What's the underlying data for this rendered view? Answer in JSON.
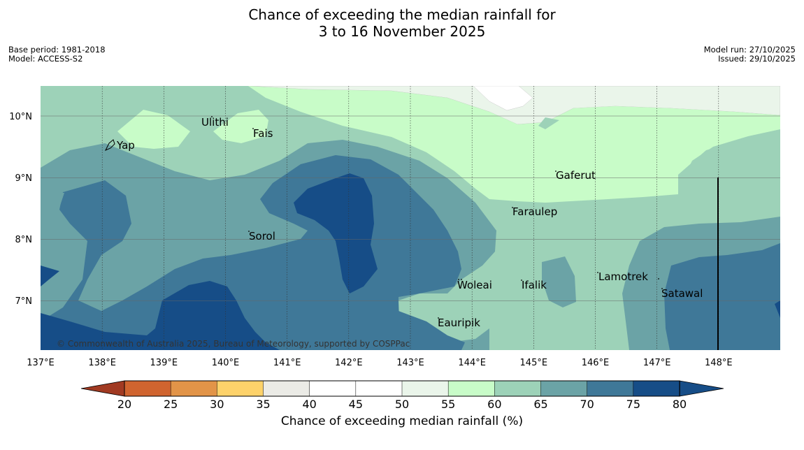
{
  "title_line1": "Chance of exceeding the median rainfall for",
  "title_line2": "3 to 16 November 2025",
  "base_period": "Base period: 1981-2018",
  "model": "Model: ACCESS-S2",
  "model_run": "Model run: 27/10/2025",
  "issued": "Issued: 29/10/2025",
  "copyright": "© Commonwealth of Australia 2025, Bureau of Meteorology, supported by COSPPac",
  "lon_ticks": [
    "137°E",
    "138°E",
    "139°E",
    "140°E",
    "141°E",
    "142°E",
    "143°E",
    "144°E",
    "145°E",
    "146°E",
    "147°E",
    "148°E"
  ],
  "lat_ticks": [
    "10°N",
    "9°N",
    "8°N",
    "7°N"
  ],
  "places": {
    "yap": "Yap",
    "ulithi": "Ulithi",
    "fais": "Fais",
    "sorol": "Sorol",
    "gaferut": "Gaferut",
    "faraulep": "Faraulep",
    "woleai": "Woleai",
    "ifalik": "Ifalik",
    "lamotrek": "Lamotrek",
    "satawal": "Satawal",
    "eauripik": "Eauripik"
  },
  "colorbar": {
    "ticks": [
      "20",
      "25",
      "30",
      "35",
      "40",
      "45",
      "50",
      "55",
      "60",
      "65",
      "70",
      "75",
      "80"
    ],
    "colors": [
      "#b04a2a",
      "#d0642f",
      "#e29448",
      "#fdd26a",
      "#ebebe6",
      "#ffffff",
      "#ffffff",
      "#eaf5ea",
      "#c8fcc8",
      "#9dd2b8",
      "#6ba3a6",
      "#3f7898",
      "#164d87"
    ],
    "low_color": "#a13a22",
    "high_color": "#164d87",
    "label": "Chance of exceeding median rainfall (%)"
  }
}
